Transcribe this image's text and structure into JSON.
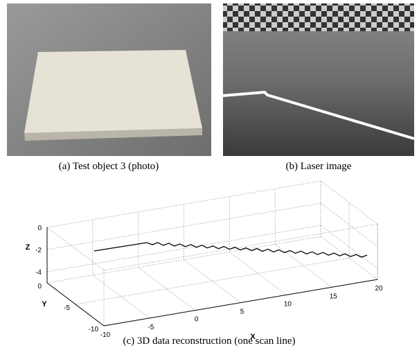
{
  "panels": [
    {
      "caption": "(a) Test object 3 (photo)"
    },
    {
      "caption": "(b) Laser image"
    }
  ],
  "plot": {
    "caption": "(c) 3D data reconstruction (one scan line)",
    "x_label": "X",
    "y_label": "Y",
    "z_label": "Z",
    "x_ticks": [
      "-10",
      "-5",
      "0",
      "5",
      "10",
      "15",
      "20"
    ],
    "y_ticks": [
      "0",
      "-5",
      "-10"
    ],
    "z_ticks": [
      "0",
      "-2",
      "-4"
    ]
  }
}
